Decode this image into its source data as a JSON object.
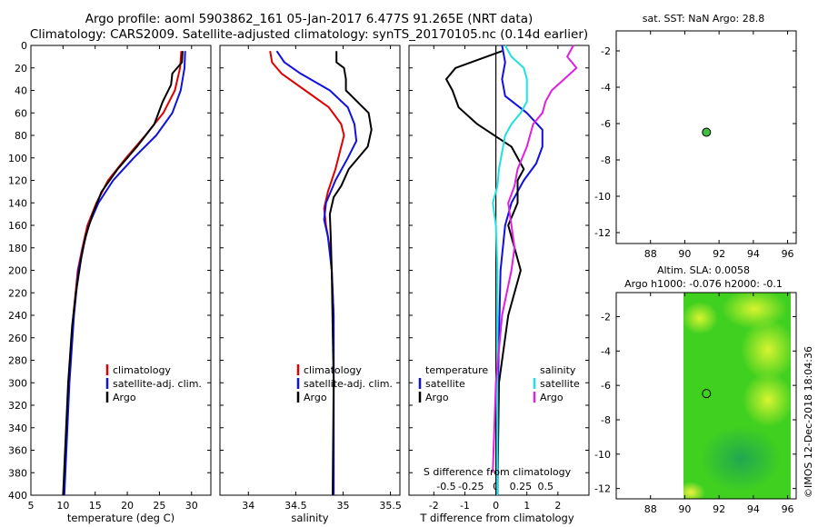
{
  "header": {
    "title_line1": "Argo profile: aoml 5903862_161 05-Jan-2017 6.477S 91.265E (NRT data)",
    "title_line2": "Climatology: CARS2009. Satellite-adjusted climatology: synTS_20170105.nc (0.14d earlier)"
  },
  "credit": "©IMOS 12-Dec-2018 18:04:36",
  "colors": {
    "climatology": "#e00000",
    "satellite": "#1010e0",
    "argo": "#000000",
    "sat_salinity": "#20e0e0",
    "argo_salinity": "#e020e0",
    "dot": "#40c040",
    "map_green": "#40d020",
    "map_yellow": "#d0f020"
  },
  "chart_data": [
    {
      "id": "temperature",
      "type": "line",
      "xlabel": "temperature (deg C)",
      "ylabel": "",
      "xlim": [
        5,
        33
      ],
      "ylim": [
        400,
        0
      ],
      "xticks": [
        "5",
        "10",
        "15",
        "20",
        "25",
        "30"
      ],
      "xtick_values": [
        5,
        10,
        15,
        20,
        25,
        30
      ],
      "yticks": [
        "0",
        "20",
        "40",
        "60",
        "80",
        "100",
        "120",
        "140",
        "160",
        "180",
        "200",
        "220",
        "240",
        "260",
        "280",
        "300",
        "320",
        "340",
        "360",
        "380",
        "400"
      ],
      "legend": [
        "climatology",
        "satellite-adj. clim.",
        "Argo"
      ],
      "series": [
        {
          "name": "climatology",
          "color": "#e00000",
          "depth": [
            5,
            20,
            40,
            60,
            80,
            100,
            120,
            140,
            160,
            180,
            200,
            240,
            300,
            400
          ],
          "values": [
            28.4,
            28.2,
            27.4,
            25.6,
            22.8,
            19.8,
            17.0,
            15.2,
            13.8,
            13.0,
            12.3,
            11.6,
            10.9,
            10.1
          ]
        },
        {
          "name": "satellite-adj. clim.",
          "color": "#1010e0",
          "depth": [
            5,
            20,
            40,
            60,
            80,
            100,
            120,
            140,
            160,
            180,
            200,
            240,
            300,
            400
          ],
          "values": [
            29.0,
            28.9,
            28.3,
            27.0,
            24.5,
            21.0,
            17.8,
            15.5,
            14.0,
            13.1,
            12.4,
            11.7,
            11.0,
            10.2
          ]
        },
        {
          "name": "Argo",
          "color": "#000000",
          "depth": [
            5,
            15,
            25,
            35,
            50,
            70,
            90,
            110,
            130,
            150,
            170,
            190,
            220,
            250,
            300,
            350,
            400
          ],
          "values": [
            28.6,
            28.5,
            27.0,
            26.8,
            25.5,
            24.2,
            21.5,
            18.5,
            16.0,
            14.6,
            13.5,
            12.8,
            12.0,
            11.4,
            10.8,
            10.4,
            10.0
          ]
        }
      ]
    },
    {
      "id": "salinity",
      "type": "line",
      "xlabel": "salinity",
      "xlim": [
        33.7,
        35.6
      ],
      "ylim": [
        400,
        0
      ],
      "xticks": [
        "34",
        "34.5",
        "35",
        "35.5"
      ],
      "xtick_values": [
        34,
        34.5,
        35,
        35.5
      ],
      "legend": [
        "climatology",
        "satellite-adj. clim.",
        "Argo"
      ],
      "series": [
        {
          "name": "climatology",
          "color": "#e00000",
          "depth": [
            5,
            15,
            25,
            40,
            55,
            70,
            80,
            90,
            110,
            130,
            145,
            160,
            180,
            200,
            240,
            300,
            400
          ],
          "values": [
            34.23,
            34.25,
            34.35,
            34.6,
            34.85,
            34.98,
            35.01,
            34.98,
            34.92,
            34.84,
            34.8,
            34.82,
            34.86,
            34.88,
            34.9,
            34.9,
            34.9
          ]
        },
        {
          "name": "satellite-adj. clim.",
          "color": "#1010e0",
          "depth": [
            5,
            15,
            25,
            40,
            55,
            70,
            85,
            100,
            120,
            140,
            155,
            170,
            200,
            240,
            300,
            400
          ],
          "values": [
            34.3,
            34.38,
            34.55,
            34.86,
            35.05,
            35.12,
            35.14,
            35.05,
            34.92,
            34.82,
            34.8,
            34.84,
            34.88,
            34.9,
            34.9,
            34.9
          ]
        },
        {
          "name": "Argo",
          "color": "#000000",
          "depth": [
            5,
            15,
            20,
            30,
            40,
            60,
            75,
            90,
            110,
            125,
            135,
            150,
            170,
            200,
            250,
            300,
            400
          ],
          "values": [
            34.93,
            34.93,
            35.01,
            35.03,
            35.03,
            35.27,
            35.3,
            35.26,
            35.06,
            34.98,
            34.9,
            34.86,
            34.87,
            34.88,
            34.89,
            34.9,
            34.89
          ]
        }
      ]
    },
    {
      "id": "difference",
      "type": "line",
      "xlabel": "T difference from climatology",
      "xlabel_top": "S difference from climatology",
      "xlim": [
        -2.8,
        3.0
      ],
      "ylim": [
        400,
        0
      ],
      "xticks": [
        "-2",
        "-1",
        "0",
        "1",
        "2"
      ],
      "xtick_values": [
        -2,
        -1,
        0,
        1,
        2
      ],
      "sticks": [
        "-0.5",
        "-0.25",
        "0",
        "0.25",
        "0.5"
      ],
      "stick_positions_T": [
        -1.6,
        -0.8,
        0,
        0.8,
        1.6
      ],
      "legend_headers": [
        "temperature",
        "salinity"
      ],
      "legend_left": [
        "satellite",
        "Argo"
      ],
      "legend_right": [
        "satellite",
        "Argo"
      ],
      "series": [
        {
          "name": "T satellite",
          "color": "#1010e0",
          "depth": [
            0,
            15,
            30,
            45,
            60,
            75,
            90,
            105,
            120,
            140,
            160,
            200,
            260,
            330,
            400
          ],
          "values": [
            0.2,
            0.3,
            0.2,
            0.3,
            1.0,
            1.5,
            1.5,
            1.3,
            0.9,
            0.5,
            0.3,
            0.15,
            0.1,
            0.05,
            0.05
          ]
        },
        {
          "name": "T Argo",
          "color": "#000000",
          "depth": [
            5,
            20,
            30,
            40,
            55,
            70,
            90,
            110,
            120,
            140,
            160,
            180,
            200,
            240,
            300,
            400
          ],
          "values": [
            0.2,
            -1.3,
            -1.6,
            -1.4,
            -1.2,
            -0.6,
            0.5,
            0.9,
            0.7,
            0.7,
            0.4,
            0.6,
            0.8,
            0.4,
            0.1,
            0.05
          ]
        },
        {
          "name": "S satellite",
          "color": "#20e0e0",
          "depth": [
            0,
            10,
            20,
            30,
            40,
            50,
            60,
            70,
            80,
            95,
            110,
            125,
            140,
            160,
            200,
            300,
            400
          ],
          "values": [
            0.3,
            0.5,
            0.9,
            1.0,
            1.0,
            1.0,
            0.8,
            0.5,
            0.3,
            0.2,
            0.1,
            0.05,
            -0.1,
            0.0,
            0.05,
            0.05,
            0.05
          ]
        },
        {
          "name": "S Argo",
          "color": "#e020e0",
          "depth": [
            0,
            10,
            20,
            30,
            40,
            50,
            60,
            70,
            90,
            110,
            125,
            140,
            160,
            180,
            200,
            240,
            300,
            380
          ],
          "values": [
            2.5,
            2.3,
            2.6,
            2.2,
            1.8,
            1.6,
            1.5,
            1.2,
            1.0,
            0.7,
            0.6,
            0.4,
            0.5,
            0.6,
            0.5,
            0.2,
            0.0,
            -0.1
          ]
        }
      ]
    },
    {
      "id": "sst-map",
      "type": "scatter",
      "title": "sat. SST: NaN Argo: 28.8",
      "xlim": [
        86,
        96.5
      ],
      "ylim": [
        -12.6,
        -0.9
      ],
      "xticks": [
        "88",
        "90",
        "92",
        "94",
        "96"
      ],
      "xtick_values": [
        88,
        90,
        92,
        94,
        96
      ],
      "yticks": [
        "-2",
        "-4",
        "-6",
        "-8",
        "-10",
        "-12"
      ],
      "ytick_values": [
        -2,
        -4,
        -6,
        -8,
        -10,
        -12
      ],
      "points": [
        {
          "x": 91.265,
          "y": -6.477
        }
      ]
    },
    {
      "id": "sla-map",
      "type": "heatmap",
      "title_line1": "Altim. SLA: 0.0058",
      "title_line2": "Argo h1000: -0.076 h2000: -0.1",
      "xlim": [
        86,
        96.5
      ],
      "ylim": [
        -12.6,
        -0.6
      ],
      "xticks": [
        "88",
        "90",
        "92",
        "94",
        "96"
      ],
      "xtick_values": [
        88,
        90,
        92,
        94,
        96
      ],
      "yticks": [
        "-2",
        "-4",
        "-6",
        "-8",
        "-10",
        "-12"
      ],
      "ytick_values": [
        -2,
        -4,
        -6,
        -8,
        -10,
        -12
      ],
      "data_extent_lon": [
        90,
        96.5
      ],
      "points": [
        {
          "x": 91.265,
          "y": -6.477
        }
      ]
    }
  ]
}
